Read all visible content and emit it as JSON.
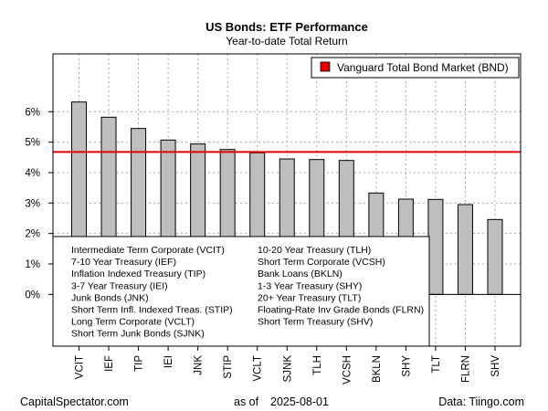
{
  "chart_data": {
    "type": "bar",
    "title": "US Bonds: ETF Performance",
    "subtitle": "Year-to-date Total Return",
    "xlabel": "",
    "ylabel": "",
    "categories": [
      "VCIT",
      "IEF",
      "TIP",
      "IEI",
      "JNK",
      "STIP",
      "VCLT",
      "SJNK",
      "TLH",
      "VCSH",
      "BKLN",
      "SHY",
      "TLT",
      "FLRN",
      "SHV"
    ],
    "values": [
      6.32,
      5.82,
      5.45,
      5.07,
      4.94,
      4.76,
      4.65,
      4.45,
      4.43,
      4.4,
      3.33,
      3.13,
      3.12,
      2.95,
      2.46
    ],
    "ylim": [
      -1.7,
      7.9
    ],
    "yticks": [
      0,
      1,
      2,
      3,
      4,
      5,
      6
    ],
    "ytick_labels": [
      "0%",
      "1%",
      "2%",
      "3%",
      "4%",
      "5%",
      "6%"
    ],
    "grid": true,
    "reference_line": {
      "label": "Vanguard Total Bond Market (BND)",
      "value": 4.68,
      "color": "#e00000"
    },
    "bar_color": "#bebebe",
    "legend_position": "top-right",
    "key": [
      "Intermediate Term Corporate (VCIT)",
      "7-10 Year Treasury (IEF)",
      "Inflation Indexed Treasury (TIP)",
      "3-7 Year Treasury (IEI)",
      "Junk Bonds (JNK)",
      "Short Term Infl. Indexed Treas. (STIP)",
      "Long Term Corporate (VCLT)",
      "Short Term Junk Bonds (SJNK)",
      "10-20 Year Treasury (TLH)",
      "Short Term Corporate (VCSH)",
      "Bank Loans (BKLN)",
      "1-3 Year Treasury (SHY)",
      "20+ Year Treasury (TLT)",
      "Floating-Rate Inv Grade Bonds (FLRN)",
      "Short Term Treasury (SHV)"
    ]
  },
  "footer": {
    "left": "CapitalSpectator.com",
    "center_prefix": "as of",
    "date": "2025-08-01",
    "right": "Data: Tiingo.com"
  }
}
